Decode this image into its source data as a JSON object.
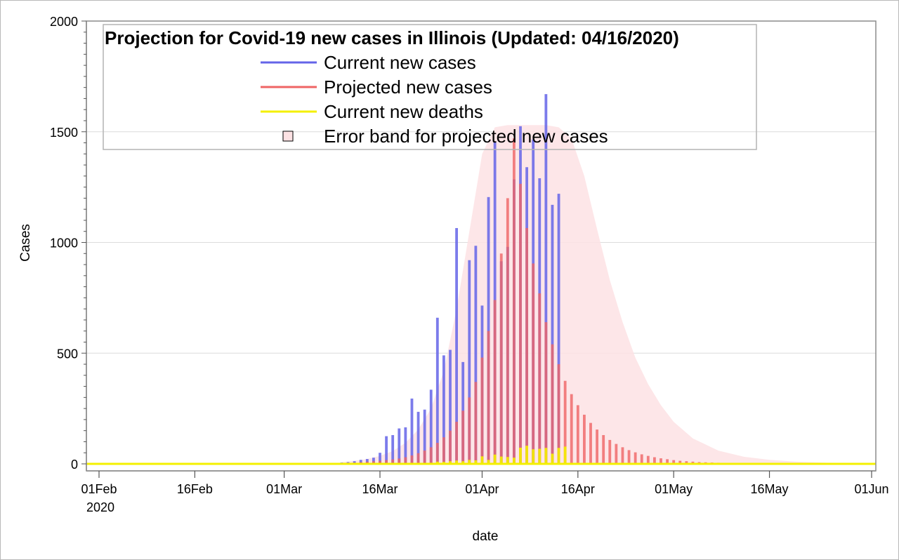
{
  "chart_data": {
    "type": "bar",
    "title": "Projection for Covid-19 new cases in Illinois (Updated: 04/16/2020)",
    "xlabel": "date",
    "ylabel": "Cases",
    "xlim": [
      "2020-02-01",
      "2020-06-01"
    ],
    "ylim": [
      0,
      2000
    ],
    "y_ticks": [
      0,
      500,
      1000,
      1500,
      2000
    ],
    "x_ticks": [
      {
        "date": "2020-02-01",
        "label": "01Feb",
        "sublabel": "2020"
      },
      {
        "date": "2020-02-16",
        "label": "16Feb",
        "sublabel": ""
      },
      {
        "date": "2020-03-01",
        "label": "01Mar",
        "sublabel": ""
      },
      {
        "date": "2020-03-16",
        "label": "16Mar",
        "sublabel": ""
      },
      {
        "date": "2020-04-01",
        "label": "01Apr",
        "sublabel": ""
      },
      {
        "date": "2020-04-16",
        "label": "16Apr",
        "sublabel": ""
      },
      {
        "date": "2020-05-01",
        "label": "01May",
        "sublabel": ""
      },
      {
        "date": "2020-05-16",
        "label": "16May",
        "sublabel": ""
      },
      {
        "date": "2020-06-01",
        "label": "01Jun",
        "sublabel": ""
      }
    ],
    "grid": true,
    "legend_position": "top-left",
    "series": [
      {
        "name": "Current new cases",
        "color": "#6464e8",
        "dates": [
          "2020-03-10",
          "2020-03-11",
          "2020-03-12",
          "2020-03-13",
          "2020-03-14",
          "2020-03-15",
          "2020-03-16",
          "2020-03-17",
          "2020-03-18",
          "2020-03-19",
          "2020-03-20",
          "2020-03-21",
          "2020-03-22",
          "2020-03-23",
          "2020-03-24",
          "2020-03-25",
          "2020-03-26",
          "2020-03-27",
          "2020-03-28",
          "2020-03-29",
          "2020-03-30",
          "2020-03-31",
          "2020-04-01",
          "2020-04-02",
          "2020-04-03",
          "2020-04-04",
          "2020-04-05",
          "2020-04-06",
          "2020-04-07",
          "2020-04-08",
          "2020-04-09",
          "2020-04-10",
          "2020-04-11",
          "2020-04-12",
          "2020-04-13",
          "2020-04-14",
          "2020-04-15",
          "2020-04-16"
        ],
        "values": [
          6,
          8,
          12,
          18,
          22,
          28,
          50,
          125,
          130,
          160,
          165,
          295,
          235,
          245,
          335,
          660,
          490,
          515,
          1065,
          460,
          920,
          985,
          715,
          1205,
          1455,
          915,
          980,
          1285,
          1525,
          1340,
          1465,
          1290,
          1670,
          1170,
          1220,
          0,
          0,
          0
        ]
      },
      {
        "name": "Projected new cases",
        "color": "#ef6464",
        "dates": [
          "2020-03-10",
          "2020-03-11",
          "2020-03-12",
          "2020-03-13",
          "2020-03-14",
          "2020-03-15",
          "2020-03-16",
          "2020-03-17",
          "2020-03-18",
          "2020-03-19",
          "2020-03-20",
          "2020-03-21",
          "2020-03-22",
          "2020-03-23",
          "2020-03-24",
          "2020-03-25",
          "2020-03-26",
          "2020-03-27",
          "2020-03-28",
          "2020-03-29",
          "2020-03-30",
          "2020-03-31",
          "2020-04-01",
          "2020-04-02",
          "2020-04-03",
          "2020-04-04",
          "2020-04-05",
          "2020-04-06",
          "2020-04-07",
          "2020-04-08",
          "2020-04-09",
          "2020-04-10",
          "2020-04-11",
          "2020-04-12",
          "2020-04-13",
          "2020-04-14",
          "2020-04-15",
          "2020-04-16",
          "2020-04-17",
          "2020-04-18",
          "2020-04-19",
          "2020-04-20",
          "2020-04-21",
          "2020-04-22",
          "2020-04-23",
          "2020-04-24",
          "2020-04-25",
          "2020-04-26",
          "2020-04-27",
          "2020-04-28",
          "2020-04-29",
          "2020-04-30",
          "2020-05-01",
          "2020-05-02",
          "2020-05-03",
          "2020-05-04",
          "2020-05-05",
          "2020-05-06",
          "2020-05-07",
          "2020-05-08",
          "2020-05-09",
          "2020-05-10",
          "2020-05-11",
          "2020-05-12",
          "2020-05-13",
          "2020-05-14",
          "2020-05-15",
          "2020-05-16",
          "2020-05-17",
          "2020-05-18",
          "2020-05-19",
          "2020-05-20"
        ],
        "values": [
          4,
          5,
          6,
          8,
          10,
          12,
          14,
          17,
          20,
          24,
          30,
          38,
          48,
          60,
          75,
          95,
          120,
          150,
          190,
          240,
          300,
          370,
          480,
          600,
          740,
          950,
          1200,
          1470,
          1265,
          1065,
          905,
          770,
          640,
          540,
          450,
          375,
          315,
          265,
          222,
          185,
          155,
          130,
          108,
          90,
          75,
          62,
          52,
          43,
          36,
          30,
          25,
          21,
          17,
          14,
          12,
          10,
          8,
          7,
          6,
          5,
          4,
          3,
          3,
          2,
          2,
          2,
          1,
          1,
          1,
          1,
          0,
          0
        ]
      },
      {
        "name": "Current new deaths",
        "color": "#f4f000",
        "dates": [
          "2020-03-20",
          "2020-03-21",
          "2020-03-22",
          "2020-03-23",
          "2020-03-24",
          "2020-03-25",
          "2020-03-26",
          "2020-03-27",
          "2020-03-28",
          "2020-03-29",
          "2020-03-30",
          "2020-03-31",
          "2020-04-01",
          "2020-04-02",
          "2020-04-03",
          "2020-04-04",
          "2020-04-05",
          "2020-04-06",
          "2020-04-07",
          "2020-04-08",
          "2020-04-09",
          "2020-04-10",
          "2020-04-11",
          "2020-04-12",
          "2020-04-13",
          "2020-04-14",
          "2020-04-15",
          "2020-04-16"
        ],
        "values": [
          1,
          2,
          3,
          4,
          5,
          10,
          9,
          12,
          15,
          12,
          18,
          16,
          34,
          18,
          42,
          33,
          31,
          28,
          73,
          82,
          66,
          68,
          72,
          46,
          72,
          78,
          0,
          0
        ]
      }
    ],
    "band": {
      "name": "Error band for projected new cases",
      "color": "#fde2e4",
      "dates": [
        "2020-03-10",
        "2020-03-12",
        "2020-03-14",
        "2020-03-16",
        "2020-03-18",
        "2020-03-20",
        "2020-03-22",
        "2020-03-24",
        "2020-03-26",
        "2020-03-28",
        "2020-03-30",
        "2020-04-01",
        "2020-04-03",
        "2020-04-05",
        "2020-04-07",
        "2020-04-09",
        "2020-04-11",
        "2020-04-13",
        "2020-04-15",
        "2020-04-17",
        "2020-04-19",
        "2020-04-21",
        "2020-04-23",
        "2020-04-25",
        "2020-04-27",
        "2020-04-29",
        "2020-05-01",
        "2020-05-04",
        "2020-05-08",
        "2020-05-12",
        "2020-05-16",
        "2020-05-20",
        "2020-05-25",
        "2020-06-01"
      ],
      "upper": [
        8,
        14,
        22,
        36,
        58,
        95,
        155,
        250,
        420,
        700,
        1050,
        1400,
        1520,
        1530,
        1530,
        1530,
        1530,
        1520,
        1470,
        1300,
        1060,
        830,
        640,
        480,
        360,
        265,
        190,
        115,
        60,
        32,
        18,
        10,
        5,
        2
      ],
      "lower": [
        0,
        0,
        0,
        0,
        0,
        0,
        0,
        0,
        0,
        0,
        0,
        0,
        0,
        0,
        0,
        0,
        0,
        0,
        0,
        0,
        0,
        0,
        0,
        0,
        0,
        0,
        0,
        0,
        0,
        0,
        0,
        0,
        0,
        0
      ]
    },
    "baseline_color": "#f4f000"
  }
}
